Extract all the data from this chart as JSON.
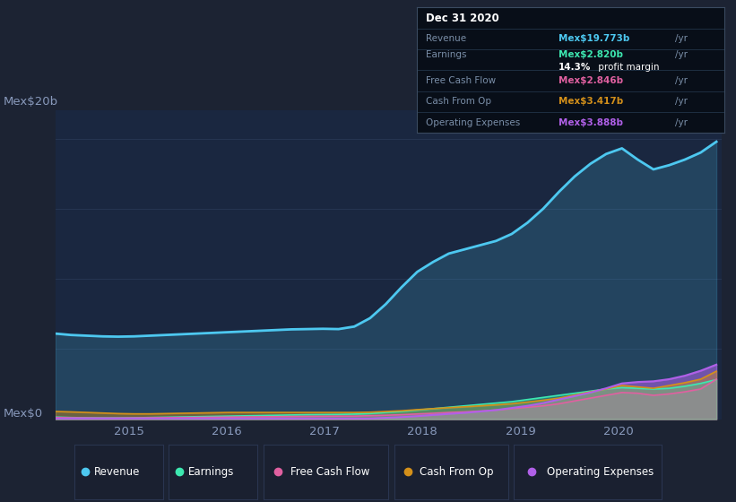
{
  "bg_color": "#1c2333",
  "plot_bg_color": "#1a2740",
  "grid_color": "#263552",
  "title_label": "Mex$20b",
  "zero_label": "Mex$0",
  "x_ticks": [
    2015,
    2016,
    2017,
    2018,
    2019,
    2020
  ],
  "ylim_max": 22,
  "revenue_color": "#4dc8f0",
  "earnings_color": "#3de8b0",
  "fcf_color": "#e060a0",
  "cashop_color": "#d4901a",
  "opex_color": "#b060e8",
  "legend_bg": "#1a2030",
  "legend_border": "#2a3550",
  "info_box": {
    "date": "Dec 31 2020",
    "revenue_label": "Revenue",
    "revenue_val": "Mex$19.773b",
    "earnings_label": "Earnings",
    "earnings_val": "Mex$2.820b",
    "profit_margin": "14.3%",
    "fcf_label": "Free Cash Flow",
    "fcf_val": "Mex$2.846b",
    "cashop_label": "Cash From Op",
    "cashop_val": "Mex$3.417b",
    "opex_label": "Operating Expenses",
    "opex_val": "Mex$3.888b"
  },
  "revenue": [
    6.1,
    6.0,
    5.95,
    5.9,
    5.88,
    5.9,
    5.95,
    6.0,
    6.05,
    6.1,
    6.15,
    6.2,
    6.25,
    6.3,
    6.35,
    6.4,
    6.42,
    6.44,
    6.42,
    6.6,
    7.2,
    8.2,
    9.4,
    10.5,
    11.2,
    11.8,
    12.1,
    12.4,
    12.7,
    13.2,
    14.0,
    15.0,
    16.2,
    17.3,
    18.2,
    18.9,
    19.3,
    18.5,
    17.8,
    18.1,
    18.5,
    19.0,
    19.773
  ],
  "earnings": [
    0.15,
    0.12,
    0.1,
    0.09,
    0.09,
    0.1,
    0.12,
    0.14,
    0.16,
    0.18,
    0.2,
    0.22,
    0.24,
    0.26,
    0.28,
    0.3,
    0.32,
    0.33,
    0.34,
    0.36,
    0.4,
    0.48,
    0.55,
    0.65,
    0.75,
    0.85,
    0.95,
    1.05,
    1.15,
    1.25,
    1.4,
    1.55,
    1.7,
    1.85,
    2.0,
    2.15,
    2.25,
    2.2,
    2.15,
    2.2,
    2.35,
    2.55,
    2.82
  ],
  "fcf": [
    0.12,
    0.1,
    0.09,
    0.08,
    0.08,
    0.09,
    0.1,
    0.11,
    0.12,
    0.13,
    0.14,
    0.15,
    0.16,
    0.17,
    0.18,
    0.19,
    0.2,
    0.21,
    0.22,
    0.22,
    0.25,
    0.28,
    0.32,
    0.37,
    0.42,
    0.48,
    0.52,
    0.58,
    0.65,
    0.75,
    0.85,
    0.95,
    1.1,
    1.3,
    1.5,
    1.7,
    1.9,
    1.85,
    1.7,
    1.8,
    1.95,
    2.15,
    2.846
  ],
  "cashop": [
    0.55,
    0.52,
    0.48,
    0.44,
    0.4,
    0.38,
    0.38,
    0.4,
    0.42,
    0.44,
    0.46,
    0.48,
    0.48,
    0.48,
    0.48,
    0.48,
    0.48,
    0.48,
    0.48,
    0.48,
    0.5,
    0.55,
    0.6,
    0.68,
    0.75,
    0.82,
    0.88,
    0.95,
    1.02,
    1.1,
    1.22,
    1.35,
    1.5,
    1.72,
    1.95,
    2.15,
    2.4,
    2.3,
    2.2,
    2.4,
    2.6,
    2.85,
    3.417
  ],
  "opex": [
    0.05,
    0.05,
    0.05,
    0.05,
    0.05,
    0.05,
    0.05,
    0.05,
    0.05,
    0.05,
    0.05,
    0.05,
    0.05,
    0.05,
    0.05,
    0.05,
    0.05,
    0.05,
    0.05,
    0.05,
    0.05,
    0.1,
    0.15,
    0.22,
    0.3,
    0.38,
    0.45,
    0.55,
    0.65,
    0.8,
    0.95,
    1.15,
    1.4,
    1.65,
    1.9,
    2.2,
    2.55,
    2.65,
    2.7,
    2.85,
    3.1,
    3.45,
    3.888
  ]
}
